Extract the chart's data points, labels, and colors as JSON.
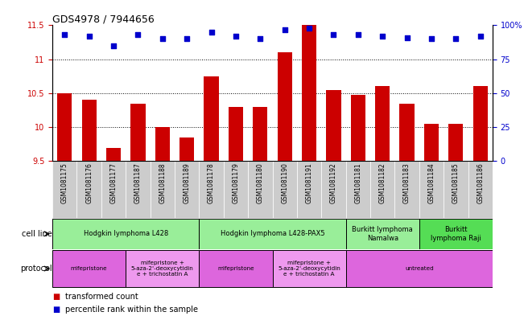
{
  "title": "GDS4978 / 7944656",
  "samples": [
    "GSM1081175",
    "GSM1081176",
    "GSM1081177",
    "GSM1081187",
    "GSM1081188",
    "GSM1081189",
    "GSM1081178",
    "GSM1081179",
    "GSM1081180",
    "GSM1081190",
    "GSM1081191",
    "GSM1081192",
    "GSM1081181",
    "GSM1081182",
    "GSM1081183",
    "GSM1081184",
    "GSM1081185",
    "GSM1081186"
  ],
  "transformed_counts": [
    10.5,
    10.4,
    9.7,
    10.35,
    10.0,
    9.85,
    10.75,
    10.3,
    10.3,
    11.1,
    11.5,
    10.55,
    10.47,
    10.6,
    10.35,
    10.05,
    10.05,
    10.6
  ],
  "percentile_ranks": [
    93,
    92,
    85,
    93,
    90,
    90,
    95,
    92,
    90,
    97,
    98,
    93,
    93,
    92,
    91,
    90,
    90,
    92
  ],
  "ymin": 9.5,
  "ymax": 11.5,
  "yticks": [
    9.5,
    10.0,
    10.5,
    11.0,
    11.5
  ],
  "ytick_labels": [
    "9.5",
    "10",
    "10.5",
    "11",
    "11.5"
  ],
  "y2min": 0,
  "y2max": 100,
  "y2ticks": [
    0,
    25,
    50,
    75,
    100
  ],
  "y2tick_labels": [
    "0",
    "25",
    "50",
    "75",
    "100%"
  ],
  "bar_color": "#cc0000",
  "dot_color": "#0000cc",
  "cell_line_groups": [
    {
      "label": "Hodgkin lymphoma L428",
      "start": 0,
      "end": 6,
      "color": "#99ee99"
    },
    {
      "label": "Hodgkin lymphoma L428-PAX5",
      "start": 6,
      "end": 12,
      "color": "#99ee99"
    },
    {
      "label": "Burkitt lymphoma\nNamalwa",
      "start": 12,
      "end": 15,
      "color": "#99ee99"
    },
    {
      "label": "Burkitt\nlymphoma Raji",
      "start": 15,
      "end": 18,
      "color": "#55dd55"
    }
  ],
  "protocol_groups": [
    {
      "label": "mifepristone",
      "start": 0,
      "end": 3,
      "color": "#dd66dd"
    },
    {
      "label": "mifepristone +\n5-aza-2'-deoxycytidin\ne + trichostatin A",
      "start": 3,
      "end": 6,
      "color": "#ee99ee"
    },
    {
      "label": "mifepristone",
      "start": 6,
      "end": 9,
      "color": "#dd66dd"
    },
    {
      "label": "mifepristone +\n5-aza-2'-deoxycytidin\ne + trichostatin A",
      "start": 9,
      "end": 12,
      "color": "#ee99ee"
    },
    {
      "label": "untreated",
      "start": 12,
      "end": 18,
      "color": "#dd66dd"
    }
  ],
  "sample_box_color": "#cccccc",
  "bg_color": "#ffffff",
  "tick_label_color_left": "#cc0000",
  "tick_label_color_right": "#0000cc",
  "legend_bar_label": "transformed count",
  "legend_dot_label": "percentile rank within the sample"
}
